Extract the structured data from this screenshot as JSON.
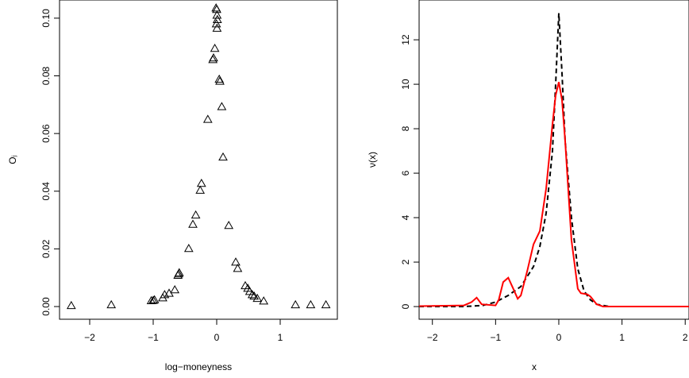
{
  "chart_data": [
    {
      "type": "scatter",
      "xlabel": "log−moneyness",
      "ylabel": "Oⱼ",
      "xlim": [
        -2.475,
        1.9
      ],
      "ylim": [
        -0.0044,
        0.1063
      ],
      "xticks": [
        {
          "value": -2,
          "label": "−2"
        },
        {
          "value": -1,
          "label": "−1"
        },
        0,
        1
      ],
      "yticks": [
        {
          "value": 0,
          "label": "0.00"
        },
        {
          "value": 0.02,
          "label": "0.02"
        },
        {
          "value": 0.04,
          "label": "0.04"
        },
        {
          "value": 0.06,
          "label": "0.06"
        },
        {
          "value": 0.08,
          "label": "0.08"
        },
        {
          "value": 0.1,
          "label": "0.10"
        }
      ],
      "color": "#000000",
      "marker": "triangle",
      "x": [
        -2.29,
        -1.66,
        -1.03,
        -1.0,
        -0.98,
        -0.85,
        -0.82,
        -0.75,
        -0.66,
        -0.61,
        -0.6,
        -0.59,
        -0.44,
        -0.375,
        -0.33,
        -0.26,
        -0.24,
        -0.14,
        -0.06,
        -0.05,
        -0.03,
        -0.01,
        0.0,
        0.005,
        0.01,
        -0.005,
        0.005,
        0.04,
        0.05,
        0.08,
        0.1,
        0.19,
        0.3,
        0.33,
        0.45,
        0.49,
        0.52,
        0.56,
        0.59,
        0.64,
        0.74,
        1.24,
        1.48,
        1.72
      ],
      "y": [
        0.0003,
        0.0006,
        0.002,
        0.0021,
        0.0023,
        0.003,
        0.0041,
        0.0046,
        0.0058,
        0.0108,
        0.0113,
        0.0117,
        0.0201,
        0.0285,
        0.0317,
        0.0403,
        0.0427,
        0.0649,
        0.0856,
        0.0862,
        0.0895,
        0.1035,
        0.103,
        0.101,
        0.0995,
        0.098,
        0.0965,
        0.0788,
        0.0781,
        0.0693,
        0.0518,
        0.0281,
        0.0154,
        0.0132,
        0.0072,
        0.0063,
        0.0052,
        0.0041,
        0.0036,
        0.0028,
        0.0019,
        0.0006,
        0.0006,
        0.0006
      ]
    },
    {
      "type": "line",
      "xlabel": "x",
      "ylabel": "ν(x)",
      "xlim": [
        -2.21,
        2.06
      ],
      "ylim": [
        -0.57,
        13.79
      ],
      "xticks": [
        {
          "value": -2,
          "label": "−2"
        },
        {
          "value": -1,
          "label": "−1"
        },
        0,
        1,
        2
      ],
      "yticks": [
        0,
        2,
        4,
        6,
        8,
        10,
        12
      ],
      "series": [
        {
          "color": "#000000",
          "style": "dashed",
          "x": [
            -2.21,
            -1.5,
            -1.2,
            -1.0,
            -0.8,
            -0.6,
            -0.4,
            -0.3,
            -0.2,
            -0.1,
            -0.05,
            0.0,
            0.05,
            0.1,
            0.2,
            0.3,
            0.4,
            0.5,
            0.6,
            0.8,
            2.06
          ],
          "values": [
            0,
            0,
            0.05,
            0.2,
            0.5,
            0.9,
            1.8,
            2.7,
            4.2,
            7.0,
            10.0,
            13.2,
            10.5,
            7.5,
            4.0,
            1.7,
            0.7,
            0.3,
            0.1,
            0,
            0
          ]
        },
        {
          "color": "#ff0000",
          "style": "solid",
          "x": [
            -2.21,
            -2.0,
            -1.5,
            -1.38,
            -1.3,
            -1.22,
            -1.0,
            -0.95,
            -0.88,
            -0.8,
            -0.72,
            -0.65,
            -0.6,
            -0.5,
            -0.4,
            -0.3,
            -0.2,
            -0.1,
            -0.05,
            0.0,
            0.05,
            0.1,
            0.2,
            0.3,
            0.35,
            0.45,
            0.5,
            0.6,
            0.7,
            1.0,
            2.06
          ],
          "values": [
            0.02,
            0.03,
            0.05,
            0.2,
            0.4,
            0.1,
            0.05,
            0.3,
            1.1,
            1.3,
            0.8,
            0.35,
            0.5,
            1.6,
            2.8,
            3.4,
            5.3,
            8.2,
            9.5,
            10.1,
            9.3,
            7.5,
            3.0,
            0.8,
            0.6,
            0.55,
            0.45,
            0.1,
            0.0,
            0,
            0
          ]
        }
      ]
    }
  ]
}
